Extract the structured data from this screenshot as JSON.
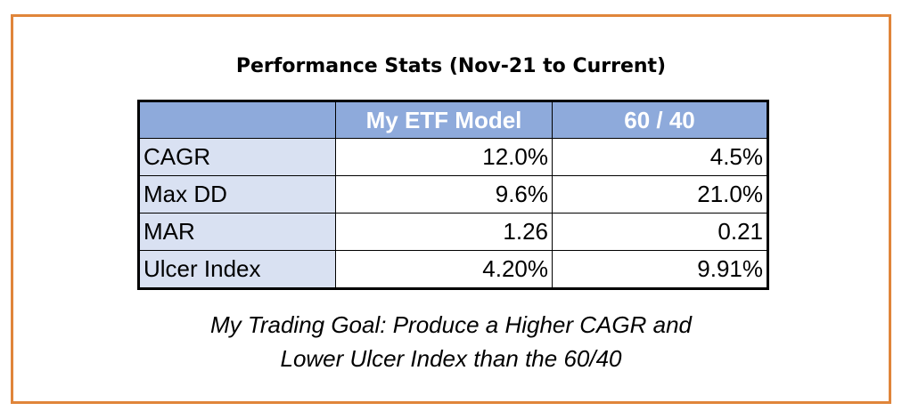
{
  "title": "Performance Stats (Nov-21 to Current)",
  "table": {
    "headers": [
      "",
      "My ETF Model",
      "60 / 40"
    ],
    "rows": [
      {
        "label": "CAGR",
        "model": "12.0%",
        "benchmark": "4.5%"
      },
      {
        "label": "Max DD",
        "model": "9.6%",
        "benchmark": "21.0%"
      },
      {
        "label": "MAR",
        "model": "1.26",
        "benchmark": "0.21"
      },
      {
        "label": "Ulcer Index",
        "model": "4.20%",
        "benchmark": "9.91%"
      }
    ]
  },
  "goal": {
    "line1": "My Trading Goal: Produce a Higher CAGR and",
    "line2": "Lower Ulcer Index than the 60/40"
  },
  "colors": {
    "border": "#e0853a",
    "header_fill": "#8eaadb",
    "label_fill": "#d9e1f2"
  }
}
